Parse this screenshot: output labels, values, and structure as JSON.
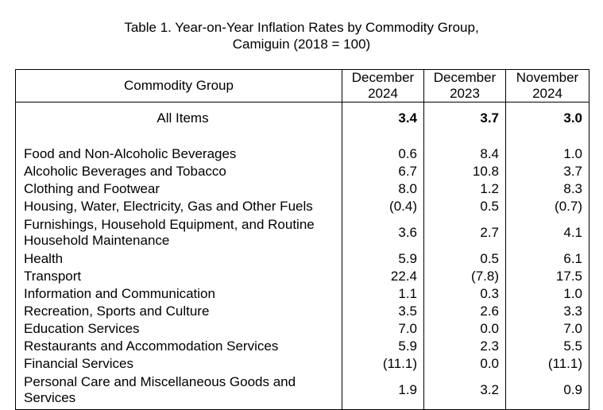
{
  "title": {
    "line1": "Table 1. Year-on-Year Inflation Rates by Commodity Group,",
    "line2": "Camiguin (2018 = 100)"
  },
  "headers": {
    "group": "Commodity Group",
    "col1_line1": "December",
    "col1_line2": "2024",
    "col2_line1": "December",
    "col2_line2": "2023",
    "col3_line1": "November",
    "col3_line2": "2024"
  },
  "all_items": {
    "label": "All Items",
    "dec2024": "3.4",
    "dec2023": "3.7",
    "nov2024": "3.0"
  },
  "rows": [
    {
      "label": "Food and Non-Alcoholic Beverages",
      "dec2024": "0.6",
      "dec2023": "8.4",
      "nov2024": "1.0"
    },
    {
      "label": "Alcoholic Beverages and Tobacco",
      "dec2024": "6.7",
      "dec2023": "10.8",
      "nov2024": "3.7"
    },
    {
      "label": "Clothing and Footwear",
      "dec2024": "8.0",
      "dec2023": "1.2",
      "nov2024": "8.3"
    },
    {
      "label": "Housing, Water, Electricity, Gas and Other Fuels",
      "dec2024": "(0.4)",
      "dec2023": "0.5",
      "nov2024": "(0.7)"
    },
    {
      "label_line1": "Furnishings, Household Equipment, and Routine",
      "label_line2": "Household Maintenance",
      "dec2024": "3.6",
      "dec2023": "2.7",
      "nov2024": "4.1"
    },
    {
      "label": "Health",
      "dec2024": "5.9",
      "dec2023": "0.5",
      "nov2024": "6.1"
    },
    {
      "label": "Transport",
      "dec2024": "22.4",
      "dec2023": "(7.8)",
      "nov2024": "17.5"
    },
    {
      "label": "Information and Communication",
      "dec2024": "1.1",
      "dec2023": "0.3",
      "nov2024": "1.0"
    },
    {
      "label": "Recreation, Sports and Culture",
      "dec2024": "3.5",
      "dec2023": "2.6",
      "nov2024": "3.3"
    },
    {
      "label": "Education Services",
      "dec2024": "7.0",
      "dec2023": "0.0",
      "nov2024": "7.0"
    },
    {
      "label": "Restaurants and Accommodation Services",
      "dec2024": "5.9",
      "dec2023": "2.3",
      "nov2024": "5.5"
    },
    {
      "label": "Financial Services",
      "dec2024": "(11.1)",
      "dec2023": "0.0",
      "nov2024": "(11.1)"
    },
    {
      "label_line1": "Personal Care and Miscellaneous Goods and",
      "label_line2": "Services",
      "dec2024": "1.9",
      "dec2023": "3.2",
      "nov2024": "0.9"
    }
  ]
}
